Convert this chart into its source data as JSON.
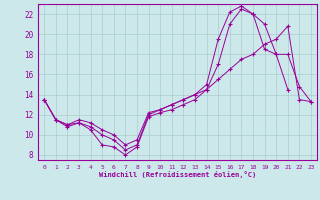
{
  "xlabel": "Windchill (Refroidissement éolien,°C)",
  "background_color": "#cce8ea",
  "line_color": "#990099",
  "grid_color": "#aacccc",
  "xlim": [
    -0.5,
    23.5
  ],
  "ylim": [
    7.5,
    23.0
  ],
  "yticks": [
    8,
    10,
    12,
    14,
    16,
    18,
    20,
    22
  ],
  "xticks": [
    0,
    1,
    2,
    3,
    4,
    5,
    6,
    7,
    8,
    9,
    10,
    11,
    12,
    13,
    14,
    15,
    16,
    17,
    18,
    19,
    20,
    21,
    22,
    23
  ],
  "xticklabels": [
    "0",
    "1",
    "2",
    "3",
    "4",
    "5",
    "6",
    "7",
    "8",
    "9",
    "10",
    "11",
    "12",
    "13",
    "14",
    "15",
    "16",
    "17",
    "18",
    "19",
    "20",
    "21",
    "22",
    "23"
  ],
  "hours": [
    0,
    1,
    2,
    3,
    4,
    5,
    6,
    7,
    8,
    9,
    10,
    11,
    12,
    13,
    14,
    15,
    16,
    17,
    18,
    19,
    20,
    21,
    22,
    23
  ],
  "line1": [
    13.5,
    11.5,
    10.8,
    11.2,
    10.5,
    9.0,
    8.8,
    8.0,
    8.8,
    11.8,
    12.2,
    12.5,
    13.0,
    13.5,
    14.5,
    17.0,
    21.0,
    22.5,
    22.0,
    18.5,
    18.0,
    14.5,
    null,
    null
  ],
  "line2": [
    13.5,
    11.5,
    11.0,
    11.2,
    10.8,
    10.0,
    9.5,
    8.5,
    9.0,
    12.0,
    12.5,
    13.0,
    13.5,
    14.0,
    15.0,
    19.5,
    22.2,
    22.8,
    22.0,
    21.0,
    18.0,
    18.0,
    14.8,
    13.3
  ],
  "line3": [
    13.5,
    11.5,
    11.0,
    11.5,
    11.2,
    10.5,
    10.0,
    9.0,
    9.5,
    12.2,
    12.5,
    13.0,
    13.5,
    14.0,
    14.5,
    15.5,
    16.5,
    17.5,
    18.0,
    19.0,
    19.5,
    20.8,
    13.5,
    13.3
  ]
}
